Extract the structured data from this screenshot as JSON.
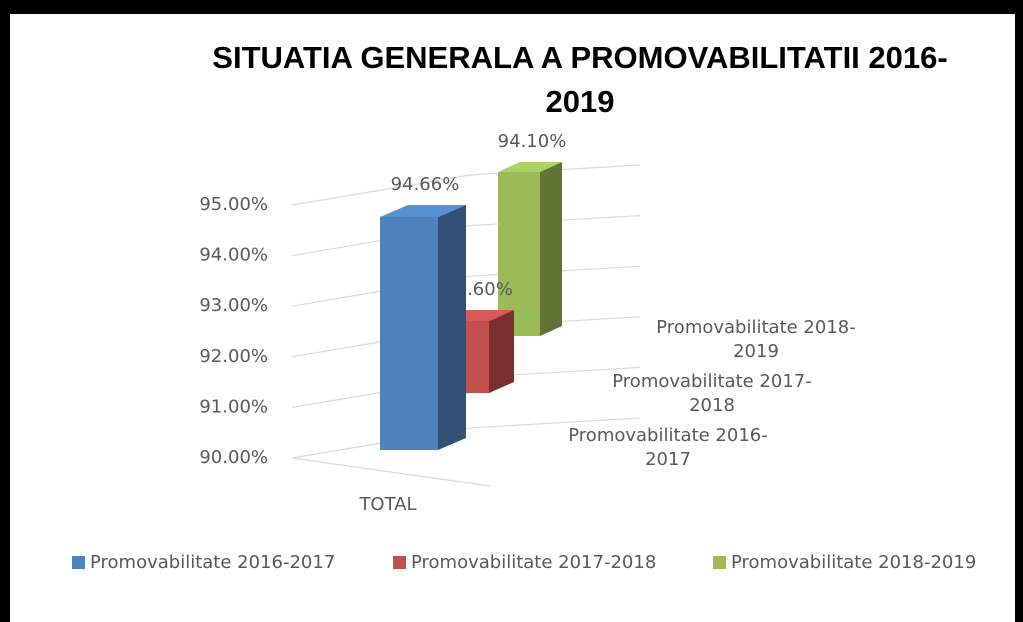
{
  "chart_data": {
    "type": "bar3d",
    "title": "SITUATIA GENERALA A PROMOVABILITATII 2016-2019",
    "categories": [
      "TOTAL"
    ],
    "series": [
      {
        "name": "Promovabilitate 2016-2017",
        "color": "#4f81bd",
        "values": [
          94.66
        ],
        "value_labels": [
          "94.66%"
        ]
      },
      {
        "name": "Promovabilitate 2017-2018",
        "color": "#c0504d",
        "values": [
          91.6
        ],
        "value_labels": [
          "91.60%"
        ]
      },
      {
        "name": "Promovabilitate 2018-2019",
        "color": "#9bbb59",
        "values": [
          94.1
        ],
        "value_labels": [
          "94.10%"
        ]
      }
    ],
    "ylim": [
      90,
      95
    ],
    "yticks": [
      {
        "value": 90,
        "label": "90.00%"
      },
      {
        "value": 91,
        "label": "91.00%"
      },
      {
        "value": 92,
        "label": "92.00%"
      },
      {
        "value": 93,
        "label": "93.00%"
      },
      {
        "value": 94,
        "label": "94.00%"
      },
      {
        "value": 95,
        "label": "95.00%"
      }
    ],
    "grid": true,
    "legend": "bottom"
  }
}
